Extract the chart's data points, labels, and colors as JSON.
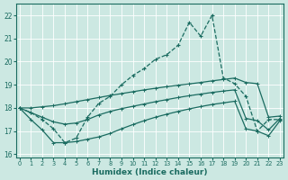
{
  "xlabel": "Humidex (Indice chaleur)",
  "bg_color": "#cce8e2",
  "grid_color": "#ffffff",
  "line_color": "#1a6b60",
  "xlim": [
    -0.3,
    23.3
  ],
  "ylim": [
    15.85,
    22.5
  ],
  "yticks": [
    16,
    17,
    18,
    19,
    20,
    21,
    22
  ],
  "xticks": [
    0,
    1,
    2,
    3,
    4,
    5,
    6,
    7,
    8,
    9,
    10,
    11,
    12,
    13,
    14,
    15,
    16,
    17,
    18,
    19,
    20,
    21,
    22,
    23
  ],
  "line_main_x": [
    0,
    1,
    2,
    3,
    4,
    5,
    6,
    7,
    8,
    9,
    10,
    11,
    12,
    13,
    14,
    15,
    16,
    17,
    18,
    19,
    20,
    21,
    22,
    23
  ],
  "line_main_y": [
    18.0,
    17.8,
    17.5,
    17.1,
    16.5,
    16.7,
    17.6,
    18.2,
    18.5,
    19.0,
    19.4,
    19.7,
    20.1,
    20.3,
    20.7,
    21.7,
    21.1,
    22.0,
    19.3,
    19.05,
    18.5,
    17.0,
    17.5,
    17.5
  ],
  "line_upper_x": [
    0,
    1,
    2,
    3,
    4,
    5,
    6,
    7,
    8,
    9,
    10,
    11,
    12,
    13,
    14,
    15,
    16,
    17,
    18,
    19,
    20,
    21,
    22,
    23
  ],
  "line_upper_y": [
    18.0,
    18.0,
    18.05,
    18.1,
    18.18,
    18.27,
    18.36,
    18.45,
    18.54,
    18.62,
    18.7,
    18.78,
    18.85,
    18.92,
    18.98,
    19.04,
    19.1,
    19.17,
    19.23,
    19.29,
    19.1,
    19.05,
    17.6,
    17.65
  ],
  "line_mid_x": [
    0,
    1,
    2,
    3,
    4,
    5,
    6,
    7,
    8,
    9,
    10,
    11,
    12,
    13,
    14,
    15,
    16,
    17,
    18,
    19,
    20,
    21,
    22,
    23
  ],
  "line_mid_y": [
    18.0,
    17.8,
    17.6,
    17.4,
    17.3,
    17.35,
    17.5,
    17.7,
    17.85,
    17.97,
    18.07,
    18.17,
    18.27,
    18.36,
    18.45,
    18.53,
    18.6,
    18.67,
    18.73,
    18.78,
    17.55,
    17.45,
    17.05,
    17.55
  ],
  "line_lower_x": [
    0,
    1,
    2,
    3,
    4,
    5,
    6,
    7,
    8,
    9,
    10,
    11,
    12,
    13,
    14,
    15,
    16,
    17,
    18,
    19,
    20,
    21,
    22,
    23
  ],
  "line_lower_y": [
    18.0,
    17.5,
    17.05,
    16.5,
    16.5,
    16.55,
    16.65,
    16.75,
    16.9,
    17.1,
    17.28,
    17.45,
    17.6,
    17.73,
    17.85,
    17.96,
    18.06,
    18.15,
    18.22,
    18.29,
    17.1,
    17.0,
    16.8,
    17.45
  ]
}
